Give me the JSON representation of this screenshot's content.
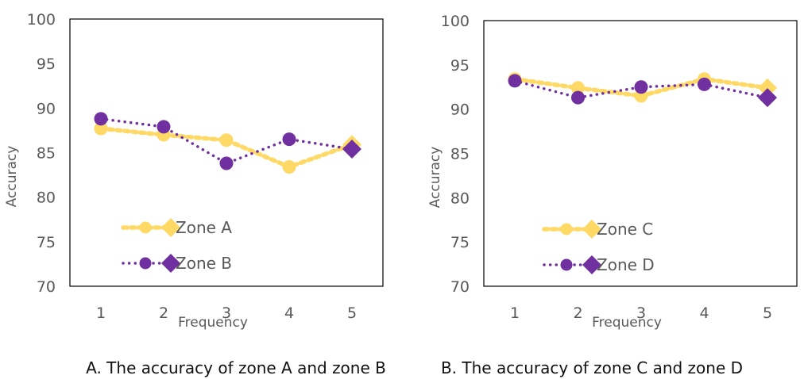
{
  "chart_data": [
    {
      "type": "line",
      "caption": "A. The accuracy of zone A and zone B",
      "xlabel": "Frequency",
      "ylabel": "Accuracy",
      "categories": [
        "1",
        "2",
        "3",
        "4",
        "5"
      ],
      "ylim": [
        70,
        100
      ],
      "yticks": [
        "70",
        "75",
        "80",
        "85",
        "90",
        "95",
        "100"
      ],
      "grid": false,
      "legend_position": "bottom-left",
      "series": [
        {
          "name": "Zone A",
          "values": [
            87.7,
            87.0,
            86.4,
            83.4,
            85.9
          ],
          "color": "#FFD966",
          "line_style": "dotted-thick"
        },
        {
          "name": "Zone B",
          "values": [
            88.8,
            87.9,
            83.8,
            86.5,
            85.4
          ],
          "color": "#7030A0",
          "line_style": "dotted"
        }
      ]
    },
    {
      "type": "line",
      "caption": "B. The accuracy of zone C and zone D",
      "xlabel": "Frequency",
      "ylabel": "Accuracy",
      "categories": [
        "1",
        "2",
        "3",
        "4",
        "5"
      ],
      "ylim": [
        70,
        100
      ],
      "yticks": [
        "70",
        "75",
        "80",
        "85",
        "90",
        "95",
        "100"
      ],
      "grid": false,
      "legend_position": "bottom-left",
      "series": [
        {
          "name": "Zone C",
          "values": [
            93.4,
            92.4,
            91.5,
            93.4,
            92.4
          ],
          "color": "#FFD966",
          "line_style": "dotted-thick"
        },
        {
          "name": "Zone D",
          "values": [
            93.2,
            91.3,
            92.5,
            92.8,
            91.3
          ],
          "color": "#7030A0",
          "line_style": "dotted"
        }
      ]
    }
  ]
}
